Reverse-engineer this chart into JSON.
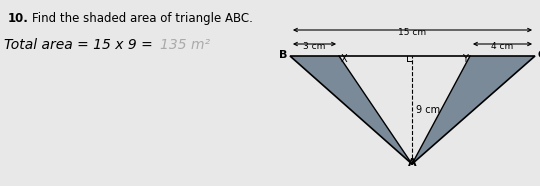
{
  "title_number": "10.",
  "title_text": "Find the shaded area of triangle ABC.",
  "B": [
    0,
    0
  ],
  "C": [
    15,
    0
  ],
  "A": [
    7.5,
    9
  ],
  "X": [
    3,
    0
  ],
  "Y": [
    11,
    0
  ],
  "foot": [
    7.5,
    0
  ],
  "height_label": "9 cm",
  "base_label": "15 cm",
  "bx_label": "3 cm",
  "yc_label": "4 cm",
  "bg_color": "#e8e8e8",
  "shaded_color": "#7a8a99",
  "triangle_edge_color": "#000000",
  "handwritten_prefix": "Total area = 15 x 9 = ",
  "handwritten_answer": "135 m²"
}
